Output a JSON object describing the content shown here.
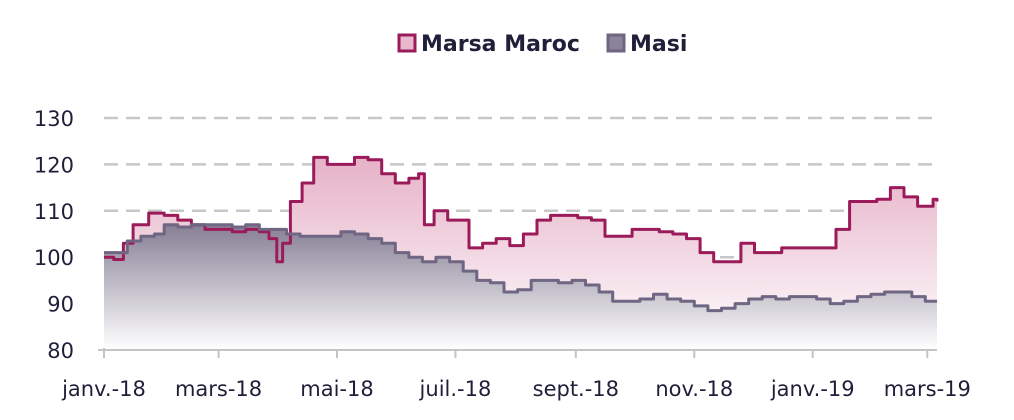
{
  "chart_data": {
    "type": "area",
    "title": "",
    "xlabel": "",
    "ylabel": "",
    "ylim": [
      80,
      130
    ],
    "yticks": [
      "80",
      "90",
      "100",
      "110",
      "120",
      "130"
    ],
    "x_tick_labels": [
      "janv.-18",
      "mars-18",
      "mai-18",
      "juil.-18",
      "sept.-18",
      "nov.-18",
      "janv.-19",
      "mars-19"
    ],
    "x_tick_dates": [
      "2018-01-01",
      "2018-03-01",
      "2018-05-01",
      "2018-07-01",
      "2018-09-01",
      "2018-11-01",
      "2019-01-01",
      "2019-03-01"
    ],
    "x_range": [
      "2018-01-01",
      "2019-03-06"
    ],
    "grid": true,
    "legend_position": "top-center",
    "series": [
      {
        "name": "Marsa Maroc",
        "color": "#9b1b5a",
        "fill_top": "#e9b8cc",
        "points": [
          [
            "2018-01-01",
            100
          ],
          [
            "2018-01-06",
            99.5
          ],
          [
            "2018-01-11",
            103
          ],
          [
            "2018-01-16",
            107
          ],
          [
            "2018-01-24",
            109.5
          ],
          [
            "2018-02-01",
            109
          ],
          [
            "2018-02-08",
            108
          ],
          [
            "2018-02-15",
            107
          ],
          [
            "2018-02-22",
            106
          ],
          [
            "2018-03-01",
            106
          ],
          [
            "2018-03-08",
            105.5
          ],
          [
            "2018-03-15",
            106
          ],
          [
            "2018-03-22",
            105.5
          ],
          [
            "2018-03-27",
            104
          ],
          [
            "2018-03-31",
            99
          ],
          [
            "2018-04-03",
            103
          ],
          [
            "2018-04-07",
            112
          ],
          [
            "2018-04-13",
            116
          ],
          [
            "2018-04-19",
            121.5
          ],
          [
            "2018-04-26",
            120
          ],
          [
            "2018-05-03",
            120
          ],
          [
            "2018-05-10",
            121.5
          ],
          [
            "2018-05-17",
            121
          ],
          [
            "2018-05-24",
            118
          ],
          [
            "2018-05-31",
            116
          ],
          [
            "2018-06-07",
            117
          ],
          [
            "2018-06-12",
            118
          ],
          [
            "2018-06-15",
            107
          ],
          [
            "2018-06-20",
            110
          ],
          [
            "2018-06-27",
            108
          ],
          [
            "2018-07-04",
            108
          ],
          [
            "2018-07-08",
            102
          ],
          [
            "2018-07-15",
            103
          ],
          [
            "2018-07-22",
            104
          ],
          [
            "2018-07-29",
            102.5
          ],
          [
            "2018-08-05",
            105
          ],
          [
            "2018-08-12",
            108
          ],
          [
            "2018-08-19",
            109
          ],
          [
            "2018-08-26",
            109
          ],
          [
            "2018-09-02",
            108.5
          ],
          [
            "2018-09-09",
            108
          ],
          [
            "2018-09-16",
            104.5
          ],
          [
            "2018-09-23",
            104.5
          ],
          [
            "2018-09-30",
            106
          ],
          [
            "2018-10-07",
            106
          ],
          [
            "2018-10-14",
            105.5
          ],
          [
            "2018-10-21",
            105
          ],
          [
            "2018-10-28",
            104
          ],
          [
            "2018-11-04",
            101
          ],
          [
            "2018-11-11",
            99
          ],
          [
            "2018-11-18",
            99
          ],
          [
            "2018-11-25",
            103
          ],
          [
            "2018-12-02",
            101
          ],
          [
            "2018-12-09",
            101
          ],
          [
            "2018-12-16",
            102
          ],
          [
            "2018-12-23",
            102
          ],
          [
            "2018-12-30",
            102
          ],
          [
            "2019-01-06",
            102
          ],
          [
            "2019-01-13",
            106
          ],
          [
            "2019-01-20",
            112
          ],
          [
            "2019-01-27",
            112
          ],
          [
            "2019-02-03",
            112.5
          ],
          [
            "2019-02-10",
            115
          ],
          [
            "2019-02-17",
            113
          ],
          [
            "2019-02-24",
            111
          ],
          [
            "2019-03-01",
            111
          ],
          [
            "2019-03-04",
            112.5
          ],
          [
            "2019-03-06",
            112
          ]
        ]
      },
      {
        "name": "Masi",
        "color": "#6e6682",
        "fill_top": "#8b8399",
        "points": [
          [
            "2018-01-01",
            101
          ],
          [
            "2018-01-08",
            101
          ],
          [
            "2018-01-13",
            103.5
          ],
          [
            "2018-01-20",
            104.5
          ],
          [
            "2018-01-27",
            105
          ],
          [
            "2018-02-01",
            107
          ],
          [
            "2018-02-08",
            106.5
          ],
          [
            "2018-02-15",
            107
          ],
          [
            "2018-02-22",
            107
          ],
          [
            "2018-03-01",
            107
          ],
          [
            "2018-03-08",
            106.5
          ],
          [
            "2018-03-15",
            107
          ],
          [
            "2018-03-22",
            106
          ],
          [
            "2018-03-29",
            106
          ],
          [
            "2018-04-05",
            105
          ],
          [
            "2018-04-12",
            104.5
          ],
          [
            "2018-04-19",
            104.5
          ],
          [
            "2018-04-26",
            104.5
          ],
          [
            "2018-05-03",
            105.5
          ],
          [
            "2018-05-10",
            105
          ],
          [
            "2018-05-17",
            104
          ],
          [
            "2018-05-24",
            103
          ],
          [
            "2018-05-31",
            101
          ],
          [
            "2018-06-07",
            100
          ],
          [
            "2018-06-14",
            99
          ],
          [
            "2018-06-21",
            100
          ],
          [
            "2018-06-28",
            99
          ],
          [
            "2018-07-05",
            97
          ],
          [
            "2018-07-12",
            95
          ],
          [
            "2018-07-19",
            94.5
          ],
          [
            "2018-07-26",
            92.5
          ],
          [
            "2018-08-02",
            93
          ],
          [
            "2018-08-09",
            95
          ],
          [
            "2018-08-16",
            95
          ],
          [
            "2018-08-23",
            94.5
          ],
          [
            "2018-08-30",
            95
          ],
          [
            "2018-09-06",
            94
          ],
          [
            "2018-09-13",
            92.5
          ],
          [
            "2018-09-20",
            90.5
          ],
          [
            "2018-09-27",
            90.5
          ],
          [
            "2018-10-04",
            91
          ],
          [
            "2018-10-11",
            92
          ],
          [
            "2018-10-18",
            91
          ],
          [
            "2018-10-25",
            90.5
          ],
          [
            "2018-11-01",
            89.5
          ],
          [
            "2018-11-08",
            88.5
          ],
          [
            "2018-11-15",
            89
          ],
          [
            "2018-11-22",
            90
          ],
          [
            "2018-11-29",
            91
          ],
          [
            "2018-12-06",
            91.5
          ],
          [
            "2018-12-13",
            91
          ],
          [
            "2018-12-20",
            91.5
          ],
          [
            "2018-12-27",
            91.5
          ],
          [
            "2019-01-03",
            91
          ],
          [
            "2019-01-10",
            90
          ],
          [
            "2019-01-17",
            90.5
          ],
          [
            "2019-01-24",
            91.5
          ],
          [
            "2019-01-31",
            92
          ],
          [
            "2019-02-07",
            92.5
          ],
          [
            "2019-02-14",
            92.5
          ],
          [
            "2019-02-21",
            91.5
          ],
          [
            "2019-02-28",
            90.5
          ],
          [
            "2019-03-06",
            90.5
          ]
        ]
      }
    ]
  }
}
